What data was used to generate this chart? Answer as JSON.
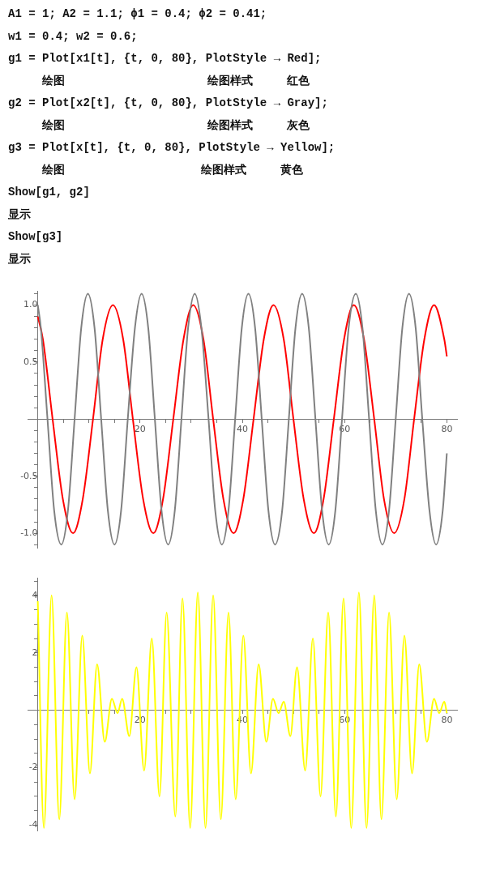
{
  "chart_data": [
    {
      "type": "other",
      "annotations": [
        "A1 = 1; A2 = 1.1; ϕ1 = 0.4; ϕ2 = 0.41;",
        "w1 = 0.4; w2 = 0.6;",
        "g1 = Plot[x1[t], {t, 0, 80}, PlotStyle → Red];",
        "     绘图                     绘图样式     红色",
        "g2 = Plot[x2[t], {t, 0, 80}, PlotStyle → Gray];",
        "     绘图                     绘图样式     灰色",
        "g3 = Plot[x[t], {t, 0, 80}, PlotStyle → Yellow];",
        "     绘图                    绘图样式     黄色",
        "Show[g1, g2]",
        "显示",
        "Show[g3]",
        "显示"
      ]
    },
    {
      "type": "line",
      "xlim": [
        -2,
        82
      ],
      "ylim": [
        -1.13,
        1.12
      ],
      "xticks": [
        {
          "value": 5,
          "label": null
        },
        {
          "value": 10,
          "label": null
        },
        {
          "value": 15,
          "label": null
        },
        20,
        {
          "value": 25,
          "label": null
        },
        {
          "value": 30,
          "label": null
        },
        {
          "value": 35,
          "label": null
        },
        40,
        {
          "value": 45,
          "label": null
        },
        {
          "value": 50,
          "label": null
        },
        {
          "value": 55,
          "label": null
        },
        60,
        {
          "value": 65,
          "label": null
        },
        {
          "value": 70,
          "label": null
        },
        {
          "value": 75,
          "label": null
        },
        80
      ],
      "yticks": [
        {
          "value": -1.1,
          "label": null
        },
        {
          "value": -1,
          "label": "-1.0"
        },
        {
          "value": -0.9,
          "label": null
        },
        {
          "value": -0.8,
          "label": null
        },
        {
          "value": -0.7,
          "label": null
        },
        {
          "value": -0.6,
          "label": null
        },
        {
          "value": -0.5,
          "label": "-0.5"
        },
        {
          "value": -0.4,
          "label": null
        },
        {
          "value": -0.3,
          "label": null
        },
        {
          "value": -0.2,
          "label": null
        },
        {
          "value": -0.1,
          "label": null
        },
        {
          "value": 0.1,
          "label": null
        },
        {
          "value": 0.2,
          "label": null
        },
        {
          "value": 0.3,
          "label": null
        },
        {
          "value": 0.4,
          "label": null
        },
        {
          "value": 0.5,
          "label": "0.5"
        },
        {
          "value": 0.6,
          "label": null
        },
        {
          "value": 0.7,
          "label": null
        },
        {
          "value": 0.8,
          "label": null
        },
        {
          "value": 0.9,
          "label": null
        },
        {
          "value": 1,
          "label": "1.0"
        },
        {
          "value": 1.1,
          "label": null
        }
      ],
      "series": [
        {
          "color": "#808080",
          "x": [
            0,
            0.6,
            1.9,
            3.2,
            4.6,
            5.9,
            7.2,
            8.5,
            9.8,
            11.1,
            12.4,
            13.7,
            15,
            16.3,
            17.6,
            19,
            20.3,
            21.6,
            22.9,
            24.2,
            25.5,
            26.8,
            28.1,
            29.4,
            30.7,
            32,
            33.4,
            34.7,
            36,
            37.3,
            38.6,
            39.9,
            41.2,
            42.5,
            43.8,
            45.1,
            46.4,
            47.8,
            49.1,
            50.4,
            51.7,
            53,
            54.3,
            55.6,
            56.9,
            58.2,
            59.5,
            60.8,
            62.2,
            63.5,
            64.8,
            66.1,
            67.4,
            68.7,
            70,
            71.3,
            72.6,
            73.9,
            75.2,
            76.6,
            77.9,
            79.2,
            80
          ],
          "values": [
            1.0,
            0.8,
            0,
            -0.8,
            -1.1,
            -0.8,
            0,
            0.8,
            1.1,
            0.8,
            0,
            -0.8,
            -1.1,
            -0.8,
            0,
            0.8,
            1.1,
            0.8,
            0,
            -0.8,
            -1.1,
            -0.8,
            0,
            0.8,
            1.1,
            0.8,
            0,
            -0.8,
            -1.1,
            -0.8,
            0,
            0.8,
            1.1,
            0.8,
            0,
            -0.8,
            -1.1,
            -0.8,
            0,
            0.8,
            1.1,
            0.8,
            0,
            -0.8,
            -1.1,
            -0.8,
            0,
            0.8,
            1.1,
            0.8,
            0,
            -0.8,
            -1.1,
            -0.8,
            0,
            0.8,
            1.1,
            0.8,
            0,
            -0.8,
            -1.1,
            -0.8,
            -0.3
          ]
        },
        {
          "color": "#ff0000",
          "x": [
            0,
            1,
            2.9,
            4.9,
            6.9,
            8.8,
            10.8,
            12.7,
            14.7,
            16.7,
            18.6,
            20.6,
            22.6,
            24.5,
            26.5,
            28.5,
            30.4,
            32.4,
            34.3,
            36.3,
            38.3,
            40.2,
            42.2,
            44.2,
            46.1,
            48.1,
            50,
            52,
            54,
            55.9,
            57.9,
            59.9,
            61.8,
            63.8,
            65.8,
            67.7,
            69.7,
            71.7,
            73.6,
            75.6,
            77.5,
            79.5,
            80
          ],
          "values": [
            0.9,
            0.7,
            0,
            -0.7,
            -1,
            -0.7,
            0,
            0.7,
            1,
            0.7,
            0,
            -0.7,
            -1,
            -0.7,
            0,
            0.7,
            1,
            0.7,
            0,
            -0.7,
            -1,
            -0.7,
            0,
            0.7,
            1,
            0.7,
            0,
            -0.7,
            -1,
            -0.7,
            0,
            0.7,
            1,
            0.7,
            0,
            -0.7,
            -1,
            -0.7,
            0,
            0.7,
            1,
            0.7,
            0.55
          ]
        }
      ]
    },
    {
      "type": "line",
      "xlim": [
        -2,
        82
      ],
      "ylim": [
        -4.2,
        4.6
      ],
      "xticks": [
        {
          "value": 5,
          "label": null
        },
        {
          "value": 10,
          "label": null
        },
        {
          "value": 15,
          "label": null
        },
        20,
        {
          "value": 25,
          "label": null
        },
        {
          "value": 30,
          "label": null
        },
        {
          "value": 35,
          "label": null
        },
        40,
        {
          "value": 45,
          "label": null
        },
        {
          "value": 50,
          "label": null
        },
        {
          "value": 55,
          "label": null
        },
        60,
        {
          "value": 65,
          "label": null
        },
        {
          "value": 70,
          "label": null
        },
        {
          "value": 75,
          "label": null
        },
        80
      ],
      "yticks": [
        -4,
        {
          "value": -3.5,
          "label": null
        },
        {
          "value": -3,
          "label": null
        },
        {
          "value": -2.5,
          "label": null
        },
        -2,
        {
          "value": -1.5,
          "label": null
        },
        {
          "value": -1,
          "label": null
        },
        {
          "value": -0.5,
          "label": null
        },
        {
          "value": 0.5,
          "label": null
        },
        {
          "value": 1,
          "label": null
        },
        {
          "value": 1.5,
          "label": null
        },
        2,
        {
          "value": 2.5,
          "label": null
        },
        {
          "value": 3,
          "label": null
        },
        {
          "value": 3.5,
          "label": null
        },
        4,
        {
          "value": 4.5,
          "label": null
        }
      ],
      "series": [
        {
          "color": "#ffff00",
          "x": [
            0,
            1.2,
            2.7,
            4.2,
            5.7,
            7.2,
            8.7,
            10.2,
            11.6,
            13.1,
            14.5,
            15.6,
            16.5,
            17.9,
            19.3,
            20.8,
            22.3,
            23.8,
            25.2,
            26.9,
            28.3,
            29.8,
            31.3,
            32.8,
            34.3,
            35.8,
            37.3,
            38.7,
            40.2,
            41.7,
            43.2,
            44.7,
            46,
            47.1,
            48.1,
            49.4,
            50.7,
            52.3,
            53.8,
            55.3,
            56.8,
            58.3,
            59.8,
            61.3,
            62.8,
            64.3,
            65.8,
            67.2,
            68.7,
            70.2,
            71.7,
            73.2,
            74.6,
            76.1,
            77.5,
            78.5,
            79.5,
            80
          ],
          "values": [
            3.8,
            -4.1,
            4.0,
            -3.8,
            3.4,
            -3.1,
            2.6,
            -2.2,
            1.6,
            -1.1,
            0.4,
            -0.1,
            0.4,
            -0.9,
            1.5,
            -2.1,
            2.5,
            -3.0,
            3.4,
            -3.7,
            3.9,
            -4.1,
            4.1,
            -4.1,
            4.0,
            -3.8,
            3.4,
            -3.1,
            2.6,
            -2.2,
            1.6,
            -1.1,
            0.4,
            -0.1,
            0.3,
            -0.9,
            1.5,
            -2.1,
            2.5,
            -3.0,
            3.4,
            -3.7,
            3.9,
            -4.1,
            4.1,
            -4.1,
            4.0,
            -3.8,
            3.4,
            -3.1,
            2.6,
            -2.2,
            1.6,
            -1.1,
            0.4,
            -0.1,
            0.3,
            -0.1
          ]
        }
      ]
    }
  ]
}
